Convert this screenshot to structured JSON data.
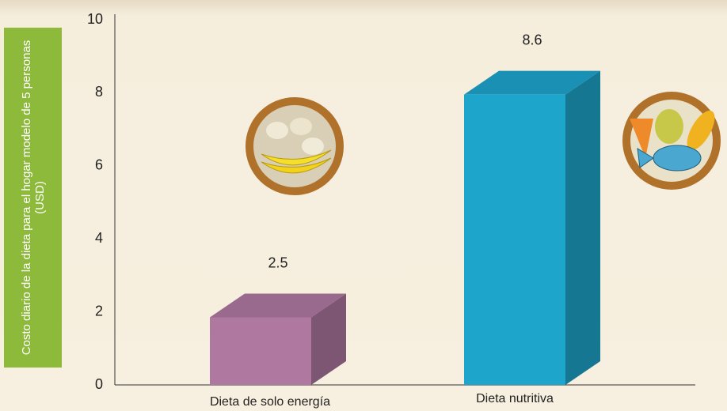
{
  "chart_data": {
    "type": "bar3d",
    "y_label": "Costo diario de la dieta para el hogar modelo de 5 personas (USD)",
    "categories": [
      "Dieta de solo energía",
      "Dieta nutritiva"
    ],
    "values": [
      2.5,
      8.6
    ],
    "colors": [
      "#ae78a0",
      "#1ea5cc"
    ],
    "ylim": [
      0,
      10
    ],
    "yticks": [
      0,
      2,
      4,
      6,
      8,
      10
    ]
  }
}
